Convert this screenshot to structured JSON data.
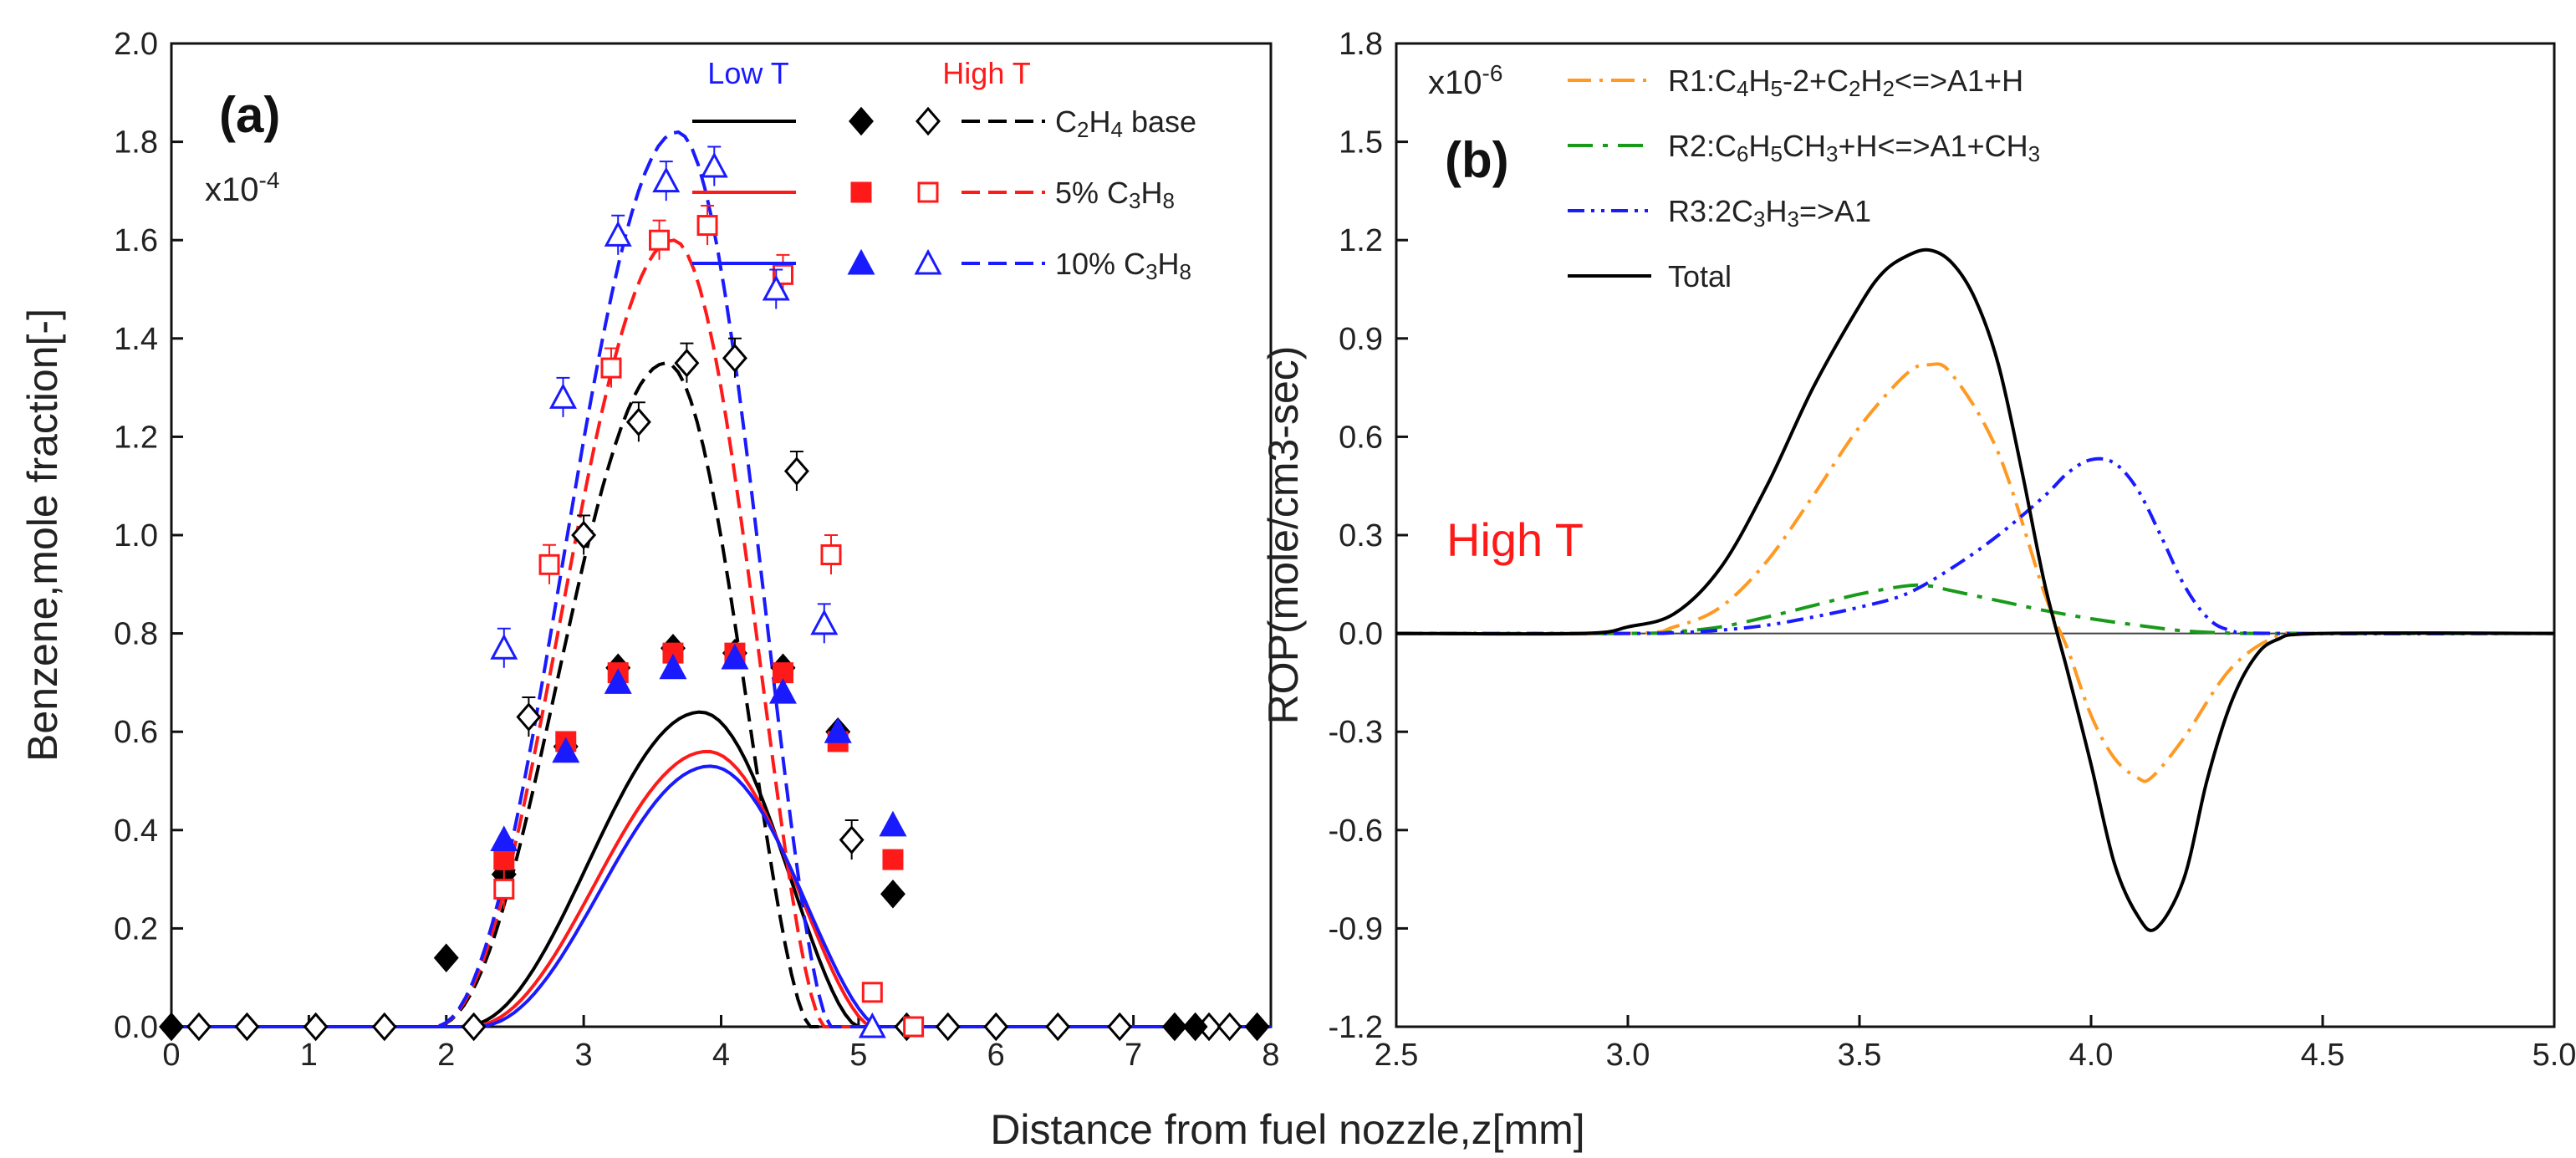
{
  "chart_data": [
    {
      "panel": "a",
      "type": "line",
      "panel_label": "(a)",
      "ylabel": "Benzene,mole fraction[-]",
      "multiplier": {
        "base": "x10",
        "exp": "-4"
      },
      "xlim": [
        0,
        8
      ],
      "ylim": [
        0,
        2.0
      ],
      "xticks": [
        0,
        1,
        2,
        3,
        4,
        5,
        6,
        7,
        8
      ],
      "yticks": [
        0.0,
        0.2,
        0.4,
        0.6,
        0.8,
        1.0,
        1.2,
        1.4,
        1.6,
        1.8,
        2.0
      ],
      "legend_header": {
        "low": "Low  T",
        "high": "High  T",
        "low_color": "#1a1aff",
        "high_color": "#ff1a1a"
      },
      "series": [
        {
          "name": "C2H4 base",
          "label_main": "C",
          "label_sub1": "2",
          "label_mid": "H",
          "label_sub2": "4",
          "label_end": " base",
          "color": "#000000",
          "low_marker": "filled-diamond",
          "high_marker": "open-diamond",
          "model_low": {
            "peak_x": 3.85,
            "peak_y": 0.64,
            "start": 2.1,
            "end": 5.0
          },
          "model_high": {
            "peak_x": 3.6,
            "peak_y": 1.35,
            "start": 1.9,
            "end": 4.65
          },
          "exp_low": [
            [
              0,
              0
            ],
            [
              2.0,
              0.14
            ],
            [
              2.42,
              0.31
            ],
            [
              2.87,
              0.57
            ],
            [
              3.25,
              0.73
            ],
            [
              3.65,
              0.77
            ],
            [
              4.1,
              0.76
            ],
            [
              4.45,
              0.73
            ],
            [
              4.85,
              0.6
            ],
            [
              5.25,
              0.27
            ],
            [
              7.3,
              0
            ],
            [
              7.45,
              0
            ],
            [
              7.9,
              0
            ]
          ],
          "exp_high": [
            [
              0.2,
              0
            ],
            [
              0.55,
              0
            ],
            [
              1.05,
              0
            ],
            [
              1.55,
              0
            ],
            [
              2.2,
              0
            ],
            [
              2.6,
              0.63
            ],
            [
              3.0,
              1.0
            ],
            [
              3.4,
              1.23
            ],
            [
              3.75,
              1.35
            ],
            [
              4.1,
              1.36
            ],
            [
              4.55,
              1.13
            ],
            [
              4.95,
              0.38
            ],
            [
              5.35,
              0
            ],
            [
              5.65,
              0
            ],
            [
              6.0,
              0
            ],
            [
              6.45,
              0
            ],
            [
              6.9,
              0
            ],
            [
              7.55,
              0
            ],
            [
              7.7,
              0
            ]
          ],
          "err_high": [
            0.05,
            0.05,
            0.05,
            0.05,
            0.05,
            0.05,
            0.05,
            0.05,
            0.05,
            0.05,
            0.05,
            0.05,
            0.05,
            0.05,
            0.05,
            0.05,
            0.05,
            0.05,
            0.05
          ]
        },
        {
          "name": "5% C3H8",
          "label_main": "5%  C",
          "label_sub1": "3",
          "label_mid": "H",
          "label_sub2": "8",
          "label_end": "",
          "color": "#ff1a1a",
          "low_marker": "filled-square",
          "high_marker": "open-square",
          "model_low": {
            "peak_x": 3.9,
            "peak_y": 0.56,
            "start": 2.15,
            "end": 5.1
          },
          "model_high": {
            "peak_x": 3.65,
            "peak_y": 1.6,
            "start": 1.9,
            "end": 4.75
          },
          "exp_low": [
            [
              2.42,
              0.34
            ],
            [
              2.87,
              0.58
            ],
            [
              3.25,
              0.72
            ],
            [
              3.65,
              0.76
            ],
            [
              4.1,
              0.76
            ],
            [
              4.45,
              0.72
            ],
            [
              4.85,
              0.58
            ],
            [
              5.25,
              0.34
            ]
          ],
          "exp_high": [
            [
              2.42,
              0.28
            ],
            [
              2.75,
              0.94
            ],
            [
              3.2,
              1.34
            ],
            [
              3.55,
              1.6
            ],
            [
              3.9,
              1.63
            ],
            [
              4.45,
              1.53
            ],
            [
              4.8,
              0.96
            ],
            [
              5.1,
              0.07
            ],
            [
              5.4,
              0
            ]
          ]
        },
        {
          "name": "10% C3H8",
          "label_main": "10% C",
          "label_sub1": "3",
          "label_mid": "H",
          "label_sub2": "8",
          "label_end": "",
          "color": "#1a1aff",
          "low_marker": "filled-triangle",
          "high_marker": "open-triangle",
          "model_low": {
            "peak_x": 3.92,
            "peak_y": 0.53,
            "start": 2.2,
            "end": 5.15
          },
          "model_high": {
            "peak_x": 3.68,
            "peak_y": 1.82,
            "start": 1.9,
            "end": 4.8
          },
          "exp_low": [
            [
              2.42,
              0.38
            ],
            [
              2.87,
              0.56
            ],
            [
              3.25,
              0.7
            ],
            [
              3.65,
              0.73
            ],
            [
              4.1,
              0.75
            ],
            [
              4.45,
              0.68
            ],
            [
              4.85,
              0.6
            ],
            [
              5.25,
              0.41
            ]
          ],
          "exp_high": [
            [
              2.42,
              0.77
            ],
            [
              2.85,
              1.28
            ],
            [
              3.25,
              1.61
            ],
            [
              3.6,
              1.72
            ],
            [
              3.95,
              1.75
            ],
            [
              4.4,
              1.5
            ],
            [
              4.75,
              0.82
            ],
            [
              5.1,
              0
            ]
          ]
        }
      ]
    },
    {
      "panel": "b",
      "type": "line",
      "panel_label": "(b)",
      "ylabel": "ROP(mole/cm3-sec)",
      "multiplier": {
        "base": "x10",
        "exp": "-6"
      },
      "annotation": "High T",
      "annotation_color": "#ff1a1a",
      "xlim": [
        2.5,
        5.0
      ],
      "ylim": [
        -1.2,
        1.8
      ],
      "xticks": [
        2.5,
        3.0,
        3.5,
        4.0,
        4.5,
        5.0
      ],
      "yticks": [
        -1.2,
        -0.9,
        -0.6,
        -0.3,
        0.0,
        0.3,
        0.6,
        0.9,
        1.2,
        1.5,
        1.8
      ],
      "series": [
        {
          "name": "R1:C4H5-2+C2H2<=>A1+H",
          "parts": [
            "R1:C",
            "4",
            "H",
            "5",
            "-2+C",
            "2",
            "H",
            "2",
            "<=>A1+H"
          ],
          "color": "#ff9922",
          "dash": "28,10,4,10",
          "x": [
            2.5,
            3.0,
            3.1,
            3.2,
            3.3,
            3.4,
            3.5,
            3.6,
            3.65,
            3.7,
            3.8,
            3.9,
            3.95,
            4.0,
            4.05,
            4.1,
            4.13,
            4.2,
            4.3,
            4.4,
            4.5,
            5.0
          ],
          "y": [
            0,
            0,
            0.02,
            0.08,
            0.22,
            0.42,
            0.63,
            0.79,
            0.82,
            0.79,
            0.55,
            0.12,
            -0.05,
            -0.25,
            -0.38,
            -0.44,
            -0.44,
            -0.32,
            -0.11,
            -0.01,
            0,
            0
          ]
        },
        {
          "name": "R2:C6H5CH3+H<=>A1+CH3",
          "parts": [
            "R2:C",
            "6",
            "H",
            "5",
            "CH",
            "3",
            "+H<=>A1+CH",
            "3",
            ""
          ],
          "color": "#1a9a1a",
          "dash": "30,12,6,12",
          "x": [
            2.5,
            3.0,
            3.1,
            3.2,
            3.3,
            3.4,
            3.5,
            3.6,
            3.65,
            3.7,
            3.8,
            3.9,
            4.0,
            4.1,
            4.2,
            4.3,
            4.4,
            5.0
          ],
          "y": [
            0,
            0,
            0.005,
            0.02,
            0.05,
            0.085,
            0.12,
            0.145,
            0.145,
            0.13,
            0.1,
            0.07,
            0.045,
            0.025,
            0.008,
            0.001,
            0,
            0
          ]
        },
        {
          "name": "R3:2C3H3=>A1",
          "parts": [
            "R3:2C",
            "3",
            "H",
            "3",
            "=>A1"
          ],
          "color": "#1a1aff",
          "dash": "20,8,4,8,4,8",
          "x": [
            2.5,
            3.0,
            3.1,
            3.2,
            3.3,
            3.4,
            3.5,
            3.6,
            3.7,
            3.8,
            3.9,
            3.95,
            4.0,
            4.05,
            4.1,
            4.15,
            4.2,
            4.25,
            4.3,
            4.4,
            5.0
          ],
          "y": [
            0,
            0,
            0.002,
            0.01,
            0.025,
            0.05,
            0.08,
            0.12,
            0.2,
            0.3,
            0.42,
            0.49,
            0.53,
            0.52,
            0.44,
            0.3,
            0.15,
            0.05,
            0.01,
            0,
            0
          ]
        },
        {
          "name": "Total",
          "parts": [
            "Total"
          ],
          "color": "#000000",
          "dash": "",
          "x": [
            2.5,
            2.9,
            3.0,
            3.1,
            3.2,
            3.3,
            3.4,
            3.5,
            3.55,
            3.6,
            3.65,
            3.7,
            3.75,
            3.8,
            3.85,
            3.9,
            3.95,
            4.0,
            4.05,
            4.1,
            4.14,
            4.2,
            4.25,
            4.3,
            4.35,
            4.4,
            4.5,
            5.0
          ],
          "y": [
            0,
            0,
            0.02,
            0.06,
            0.2,
            0.45,
            0.75,
            1.0,
            1.1,
            1.15,
            1.17,
            1.13,
            1.02,
            0.82,
            0.5,
            0.15,
            -0.12,
            -0.4,
            -0.7,
            -0.86,
            -0.9,
            -0.75,
            -0.45,
            -0.22,
            -0.08,
            -0.02,
            0,
            0
          ]
        }
      ]
    }
  ],
  "shared_xlabel": "Distance from fuel nozzle,z[mm]"
}
